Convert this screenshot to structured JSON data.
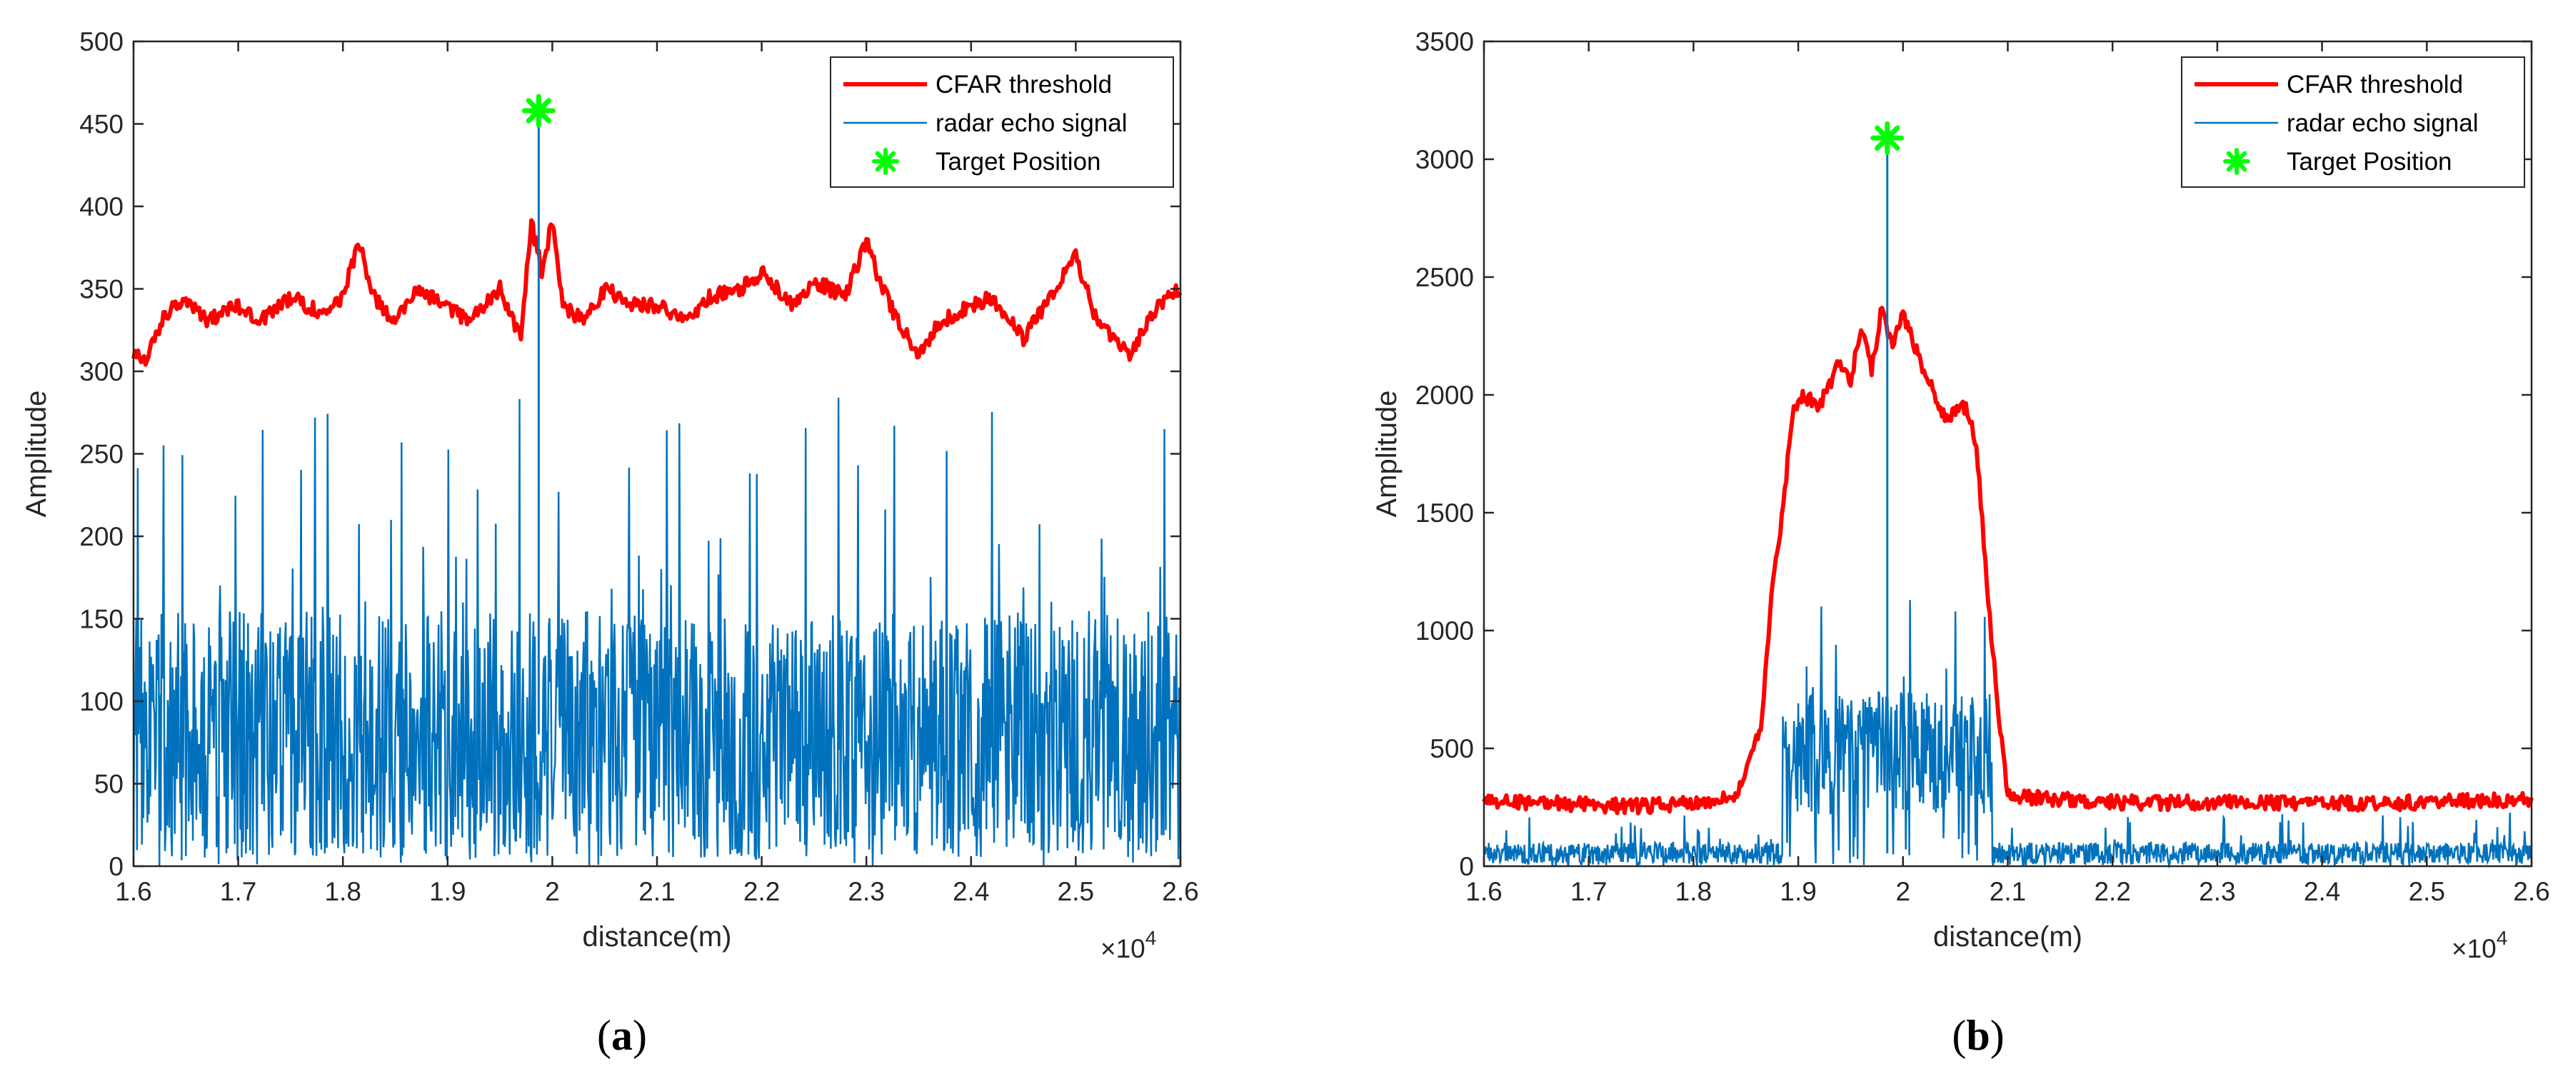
{
  "figure_labels": [
    {
      "open": "(",
      "letter": "a",
      "close": ")"
    },
    {
      "open": "(",
      "letter": "b",
      "close": ")"
    }
  ],
  "chart_data": [
    {
      "type": "line",
      "title": "",
      "xlabel": "distance(m)",
      "ylabel": "Amplitude",
      "x_multiplier_label": "×10",
      "x_multiplier_exponent": "4",
      "xlim": [
        1.6,
        2.6
      ],
      "ylim": [
        0,
        500
      ],
      "xticks": [
        "1.6",
        "1.7",
        "1.8",
        "1.9",
        "2",
        "2.1",
        "2.2",
        "2.3",
        "2.4",
        "2.5",
        "2.6"
      ],
      "yticks": [
        "0",
        "50",
        "100",
        "150",
        "200",
        "250",
        "300",
        "350",
        "400",
        "450",
        "500"
      ],
      "legend_position": "top-right",
      "series": [
        {
          "name": "CFAR threshold",
          "color": "#ff0000",
          "kind": "line",
          "x": [
            1.6,
            1.61,
            1.62,
            1.63,
            1.65,
            1.67,
            1.7,
            1.72,
            1.75,
            1.78,
            1.8,
            1.815,
            1.83,
            1.85,
            1.87,
            1.9,
            1.92,
            1.95,
            1.97,
            1.98,
            1.99,
            2.0,
            2.01,
            2.03,
            2.05,
            2.08,
            2.1,
            2.13,
            2.15,
            2.18,
            2.2,
            2.23,
            2.25,
            2.28,
            2.3,
            2.31,
            2.33,
            2.35,
            2.37,
            2.4,
            2.42,
            2.45,
            2.47,
            2.5,
            2.52,
            2.55,
            2.58,
            2.6
          ],
          "y": [
            312,
            305,
            320,
            335,
            345,
            330,
            340,
            330,
            345,
            335,
            345,
            378,
            345,
            330,
            350,
            340,
            330,
            350,
            320,
            390,
            360,
            392,
            340,
            330,
            350,
            340,
            340,
            330,
            345,
            350,
            360,
            340,
            355,
            345,
            380,
            360,
            330,
            310,
            330,
            340,
            345,
            320,
            340,
            370,
            330,
            310,
            340,
            350
          ]
        },
        {
          "name": "radar echo signal",
          "color": "#0072bd",
          "kind": "noise",
          "noise_base": 80,
          "noise_spread": 75,
          "noise_max": 285,
          "noise_min": 0,
          "spike_x": 1.987,
          "spike_y": 455,
          "spike_base": 350
        },
        {
          "name": "Target Position",
          "color": "#00ff00",
          "kind": "marker",
          "x": [
            1.987
          ],
          "y": [
            458
          ]
        }
      ]
    },
    {
      "type": "line",
      "title": "",
      "xlabel": "distance(m)",
      "ylabel": "Amplitude",
      "x_multiplier_label": "×10",
      "x_multiplier_exponent": "4",
      "xlim": [
        1.6,
        2.6
      ],
      "ylim": [
        0,
        3500
      ],
      "xticks": [
        "1.6",
        "1.7",
        "1.8",
        "1.9",
        "2",
        "2.1",
        "2.2",
        "2.3",
        "2.4",
        "2.5",
        "2.6"
      ],
      "yticks": [
        "0",
        "500",
        "1000",
        "1500",
        "2000",
        "2500",
        "3000",
        "3500"
      ],
      "legend_position": "top-right",
      "series": [
        {
          "name": "CFAR threshold",
          "color": "#ff0000",
          "kind": "line",
          "x": [
            1.6,
            1.65,
            1.7,
            1.75,
            1.8,
            1.84,
            1.865,
            1.875,
            1.885,
            1.895,
            1.905,
            1.92,
            1.94,
            1.95,
            1.96,
            1.97,
            1.98,
            1.99,
            2.0,
            2.02,
            2.04,
            2.06,
            2.07,
            2.08,
            2.09,
            2.1,
            2.12,
            2.2,
            2.3,
            2.4,
            2.5,
            2.6
          ],
          "y": [
            270,
            270,
            260,
            255,
            270,
            300,
            600,
            1200,
            1500,
            1950,
            2000,
            1950,
            2150,
            2050,
            2300,
            2100,
            2380,
            2200,
            2350,
            2100,
            1900,
            1950,
            1800,
            1200,
            700,
            300,
            290,
            270,
            270,
            265,
            270,
            285
          ]
        },
        {
          "name": "radar echo signal",
          "color": "#0072bd",
          "kind": "noise",
          "noise_base": 55,
          "noise_spread": 45,
          "noise_max": 230,
          "noise_min": 0,
          "burst_x": [
            1.885,
            2.085
          ],
          "burst_base": 480,
          "burst_spread": 260,
          "burst_max": 1180,
          "spike_x": 1.985,
          "spike_y": 3090,
          "spike_base": 2200
        },
        {
          "name": "Target Position",
          "color": "#00ff00",
          "kind": "marker",
          "x": [
            1.985
          ],
          "y": [
            3090
          ]
        }
      ]
    }
  ]
}
